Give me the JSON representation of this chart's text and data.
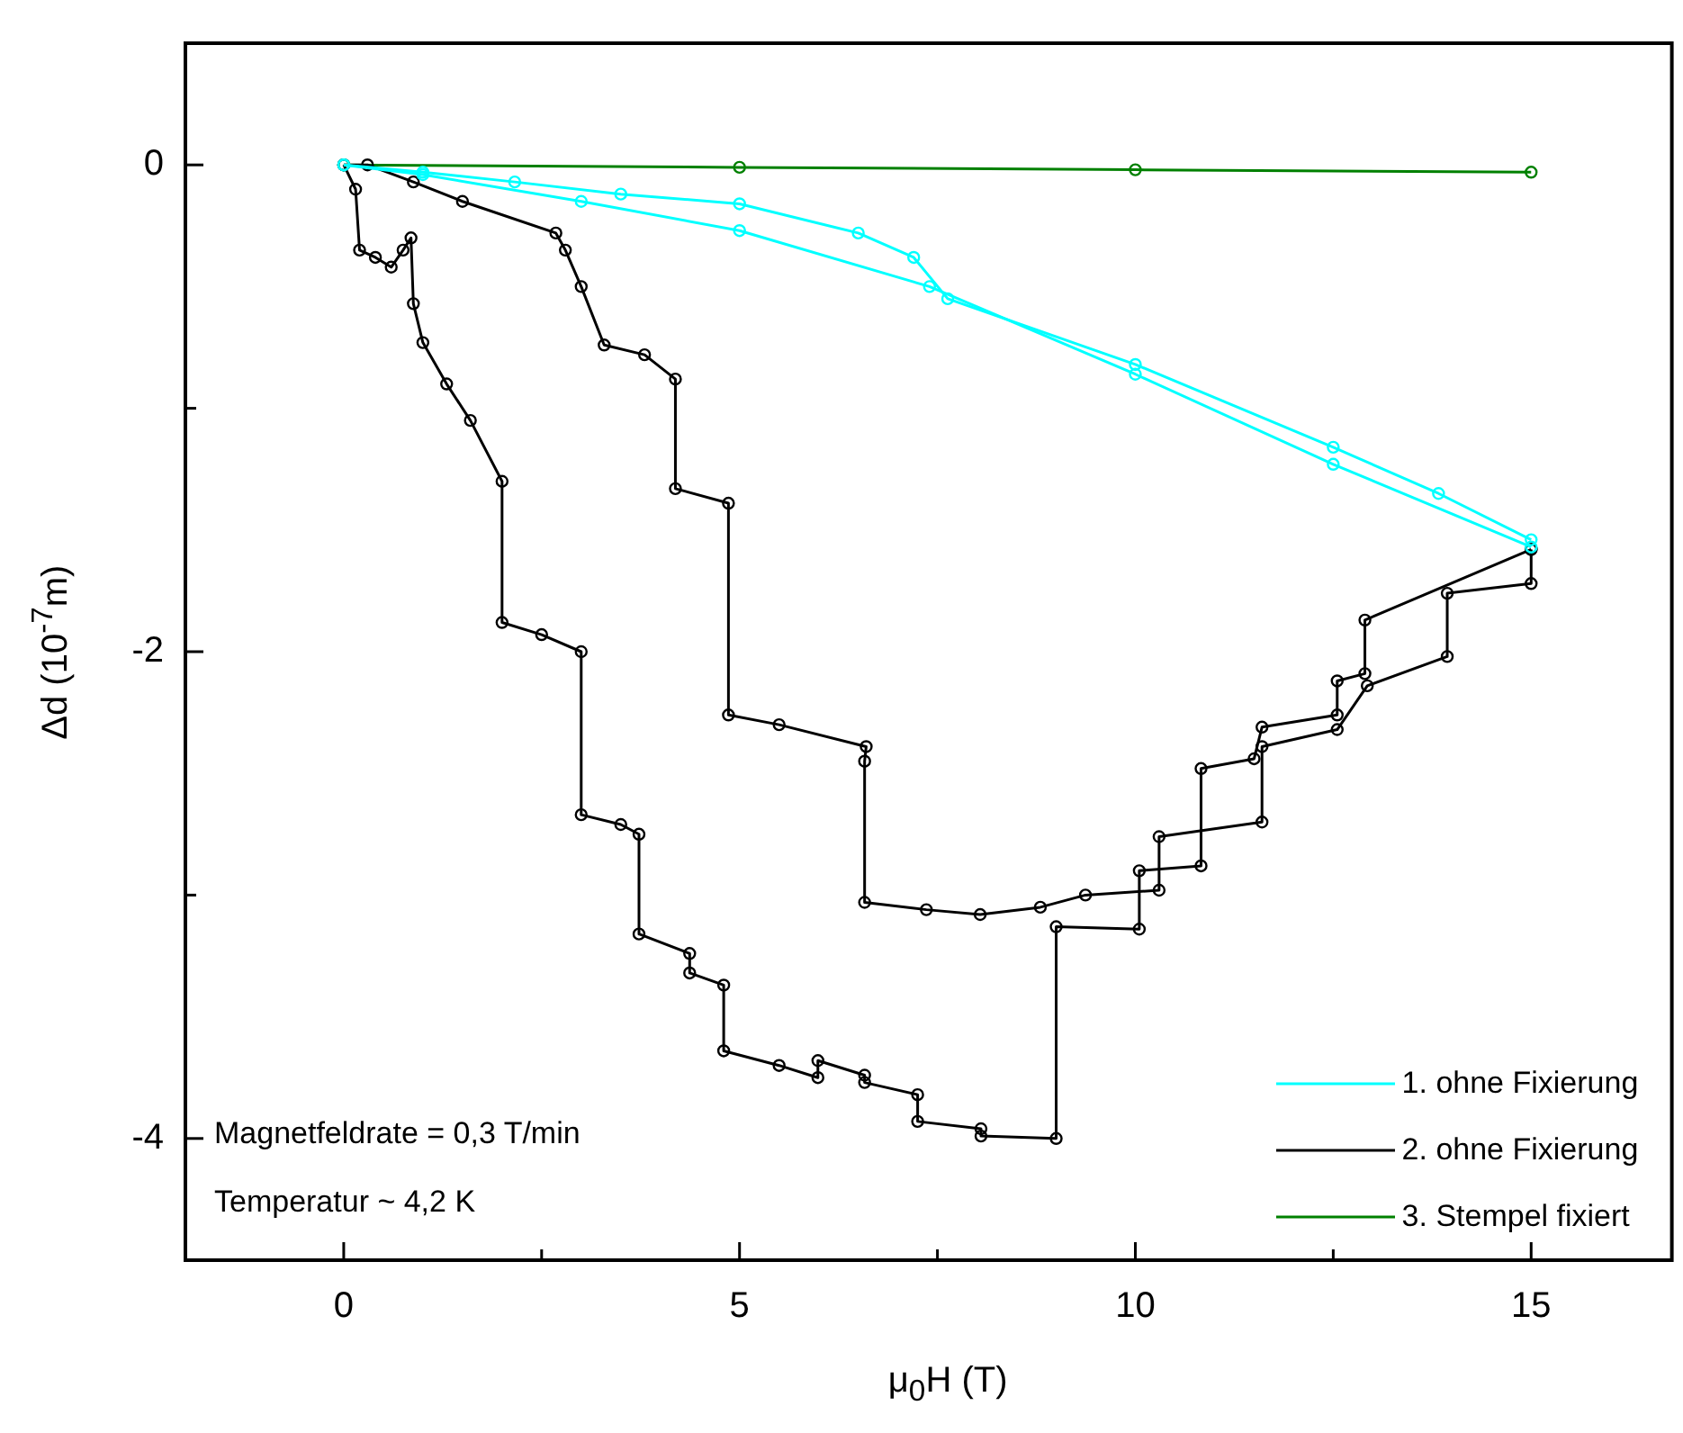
{
  "chart_data": {
    "type": "line",
    "xlabel": "μ$_{0}$H (T)",
    "ylabel": "Δd (10$^{-7}$m)",
    "xlim": [
      -2,
      16.8
    ],
    "ylim": [
      -4.5,
      0.5
    ],
    "xticks": [
      0,
      {
        "value": 2.5,
        "label": null
      },
      5,
      {
        "value": 7.5,
        "label": null
      },
      10,
      {
        "value": 12.5,
        "label": null
      },
      15
    ],
    "yticks": [
      -4,
      {
        "value": -3,
        "label": null
      },
      -2,
      {
        "value": -1,
        "label": null
      },
      0
    ],
    "grid": false,
    "legend": "bottom right",
    "marker": "circle",
    "line_style": "solid",
    "annotations": [
      "Magnetfeldrate = 0,3 T/min",
      "Temperatur ~ 4,2 K"
    ],
    "series": [
      {
        "name": "1. ohne Fixierung",
        "color": "#00ffff",
        "x": [
          0,
          1,
          2.16,
          3.5,
          5,
          6.5,
          7.2,
          7.63,
          10,
          12.5,
          13.83,
          15
        ],
        "values": [
          0,
          -0.03,
          -0.07,
          -0.12,
          -0.16,
          -0.28,
          -0.38,
          -0.55,
          -0.82,
          -1.16,
          -1.35,
          -1.54
        ]
      },
      {
        "color": "#00ffff",
        "x": [
          0,
          1,
          3,
          5,
          7.4,
          10,
          12.5,
          15
        ],
        "values": [
          0,
          -0.04,
          -0.15,
          -0.27,
          -0.5,
          -0.86,
          -1.23,
          -1.57
        ]
      },
      {
        "name": "2. ohne Fixierung",
        "color": "#000000",
        "x": [
          0,
          0.15,
          0.2,
          0.4,
          0.6,
          0.75,
          0.85,
          0.88,
          1,
          1.3,
          1.6,
          2,
          2,
          2.5,
          3,
          3,
          3.5,
          3.73,
          3.73,
          4.37,
          4.37,
          4.8,
          4.8,
          5.5,
          5.99,
          5.99,
          6.58,
          6.58,
          7.25,
          7.25,
          8.05,
          8.05,
          9,
          9,
          10.05,
          10.05,
          10.83,
          10.83,
          11.5,
          11.6,
          12.55,
          12.55,
          12.9,
          12.9,
          15
        ],
        "values": [
          0,
          -0.1,
          -0.35,
          -0.38,
          -0.42,
          -0.35,
          -0.3,
          -0.57,
          -0.73,
          -0.9,
          -1.05,
          -1.3,
          -1.88,
          -1.93,
          -2,
          -2.67,
          -2.71,
          -2.75,
          -3.16,
          -3.24,
          -3.32,
          -3.37,
          -3.64,
          -3.7,
          -3.75,
          -3.68,
          -3.74,
          -3.77,
          -3.82,
          -3.93,
          -3.96,
          -3.99,
          -4,
          -3.13,
          -3.14,
          -2.9,
          -2.88,
          -2.48,
          -2.44,
          -2.31,
          -2.26,
          -2.12,
          -2.09,
          -1.87,
          -1.58
        ]
      },
      {
        "color": "#000000",
        "x": [
          0,
          0.3,
          0.88,
          1.5,
          2.68,
          2.8,
          3,
          3.29,
          3.8,
          4.19,
          4.19,
          4.86,
          4.86,
          5.5,
          6.6,
          6.58,
          6.58,
          7.36,
          8.04,
          8.8,
          9.37,
          10.3,
          10.3,
          11.6,
          11.6,
          12.55,
          12.93,
          13.94,
          13.94,
          15,
          15
        ],
        "values": [
          0,
          0,
          -0.07,
          -0.15,
          -0.28,
          -0.35,
          -0.5,
          -0.74,
          -0.78,
          -0.88,
          -1.33,
          -1.39,
          -2.26,
          -2.3,
          -2.39,
          -2.45,
          -3.03,
          -3.06,
          -3.08,
          -3.05,
          -3,
          -2.98,
          -2.76,
          -2.7,
          -2.39,
          -2.32,
          -2.14,
          -2.02,
          -1.76,
          -1.72,
          -1.58
        ]
      },
      {
        "name": "3. Stempel fixiert",
        "color": "#008000",
        "x": [
          0,
          5,
          10,
          15
        ],
        "values": [
          0,
          -0.01,
          -0.02,
          -0.03
        ]
      }
    ]
  }
}
